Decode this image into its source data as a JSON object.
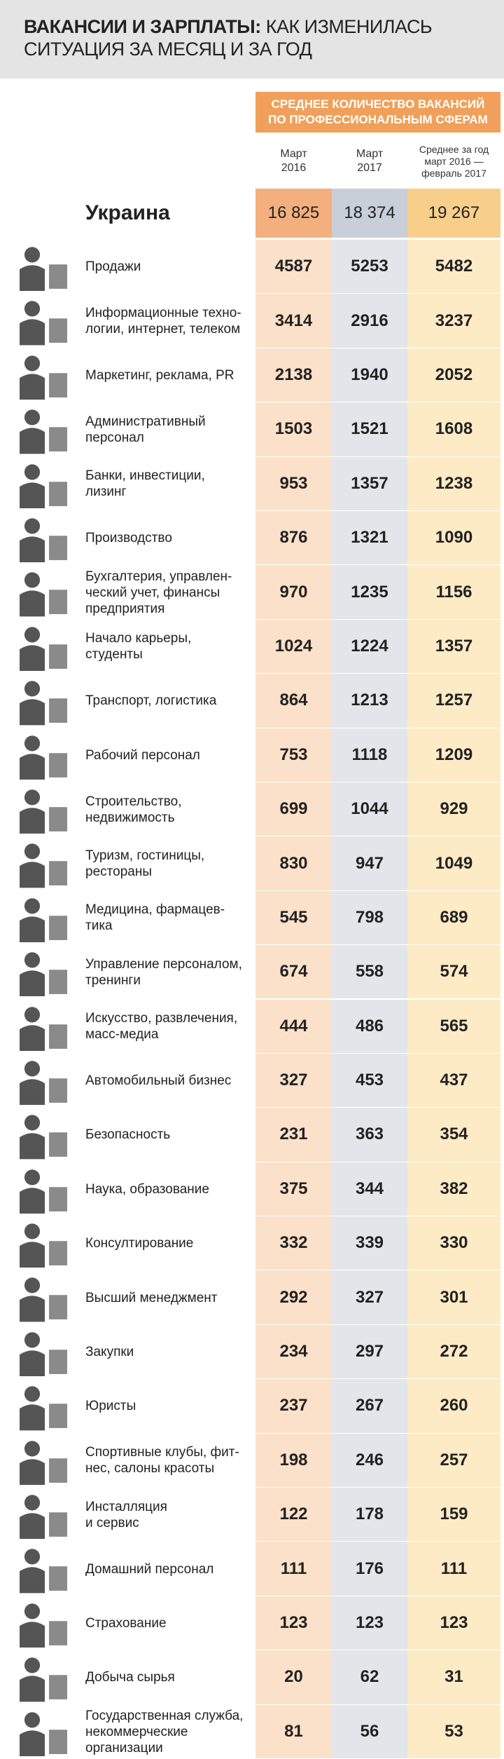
{
  "header": {
    "title_bold": "ВАКАНСИИ И ЗАРПЛАТЫ:",
    "title_rest": "КАК ИЗМЕНИЛАСЬ",
    "title_line2": "СИТУАЦИЯ ЗА МЕСЯЦ И ЗА ГОД"
  },
  "table": {
    "caption": [
      "СРЕДНЕЕ КОЛИЧЕСТВО ВАКАНСИЙ",
      "ПО ПРОФЕССИОНАЛЬНЫМ СФЕРАМ"
    ],
    "columns": [
      [
        "Март",
        "2016"
      ],
      [
        "Март",
        "2017"
      ],
      [
        "Среднее за год",
        "март 2016 —",
        "февраль 2017"
      ]
    ],
    "total": {
      "label": "Украина",
      "values": [
        "16 825",
        "18 374",
        "19 267"
      ]
    },
    "rows": [
      {
        "label": [
          "Продажи"
        ],
        "values": [
          4587,
          5253,
          5482
        ]
      },
      {
        "label": [
          "Информационные техно-",
          "логии, интернет, телеком"
        ],
        "values": [
          3414,
          2916,
          3237
        ]
      },
      {
        "label": [
          "Маркетинг, реклама, PR"
        ],
        "values": [
          2138,
          1940,
          2052
        ]
      },
      {
        "label": [
          "Административный",
          "персонал"
        ],
        "values": [
          1503,
          1521,
          1608
        ]
      },
      {
        "label": [
          "Банки, инвестиции,",
          "лизинг"
        ],
        "values": [
          953,
          1357,
          1238
        ]
      },
      {
        "label": [
          "Производство"
        ],
        "values": [
          876,
          1321,
          1090
        ]
      },
      {
        "label": [
          "Бухгалтерия, управлен-",
          "ческий учет, финансы",
          "предприятия"
        ],
        "values": [
          970,
          1235,
          1156
        ]
      },
      {
        "label": [
          "Начало карьеры,",
          "студенты"
        ],
        "values": [
          1024,
          1224,
          1357
        ]
      },
      {
        "label": [
          "Транспорт, логистика"
        ],
        "values": [
          864,
          1213,
          1257
        ]
      },
      {
        "label": [
          "Рабочий персонал"
        ],
        "values": [
          753,
          1118,
          1209
        ]
      },
      {
        "label": [
          "Строительство,",
          "недвижимость"
        ],
        "values": [
          699,
          1044,
          929
        ]
      },
      {
        "label": [
          "Туризм, гостиницы,",
          "рестораны"
        ],
        "values": [
          830,
          947,
          1049
        ]
      },
      {
        "label": [
          "Медицина, фармацев-",
          "тика"
        ],
        "values": [
          545,
          798,
          689
        ]
      },
      {
        "label": [
          "Управление персоналом,",
          "тренинги"
        ],
        "values": [
          674,
          558,
          574
        ]
      },
      {
        "label": [
          "Искусство, развлечения,",
          "масс-медиа"
        ],
        "values": [
          444,
          486,
          565
        ]
      },
      {
        "label": [
          "Автомобильный бизнес"
        ],
        "values": [
          327,
          453,
          437
        ]
      },
      {
        "label": [
          "Безопасность"
        ],
        "values": [
          231,
          363,
          354
        ]
      },
      {
        "label": [
          "Наука, образование"
        ],
        "values": [
          375,
          344,
          382
        ]
      },
      {
        "label": [
          "Консултирование"
        ],
        "values": [
          332,
          339,
          330
        ]
      },
      {
        "label": [
          "Высший менеджмент"
        ],
        "values": [
          292,
          327,
          301
        ]
      },
      {
        "label": [
          "Закупки"
        ],
        "values": [
          234,
          297,
          272
        ]
      },
      {
        "label": [
          "Юристы"
        ],
        "values": [
          237,
          267,
          260
        ]
      },
      {
        "label": [
          "Спортивные клубы, фит-",
          "нес, салоны красоты"
        ],
        "values": [
          198,
          246,
          257
        ]
      },
      {
        "label": [
          "Инсталляция",
          "и сервис"
        ],
        "values": [
          122,
          178,
          159
        ]
      },
      {
        "label": [
          "Домашний персонал"
        ],
        "values": [
          111,
          176,
          111
        ]
      },
      {
        "label": [
          "Страхование"
        ],
        "values": [
          123,
          123,
          123
        ]
      },
      {
        "label": [
          "Добыча сырья"
        ],
        "values": [
          20,
          62,
          31
        ]
      },
      {
        "label": [
          "Государственная служба,",
          "некоммерческие",
          "организации"
        ],
        "values": [
          81,
          56,
          53
        ]
      }
    ]
  }
}
